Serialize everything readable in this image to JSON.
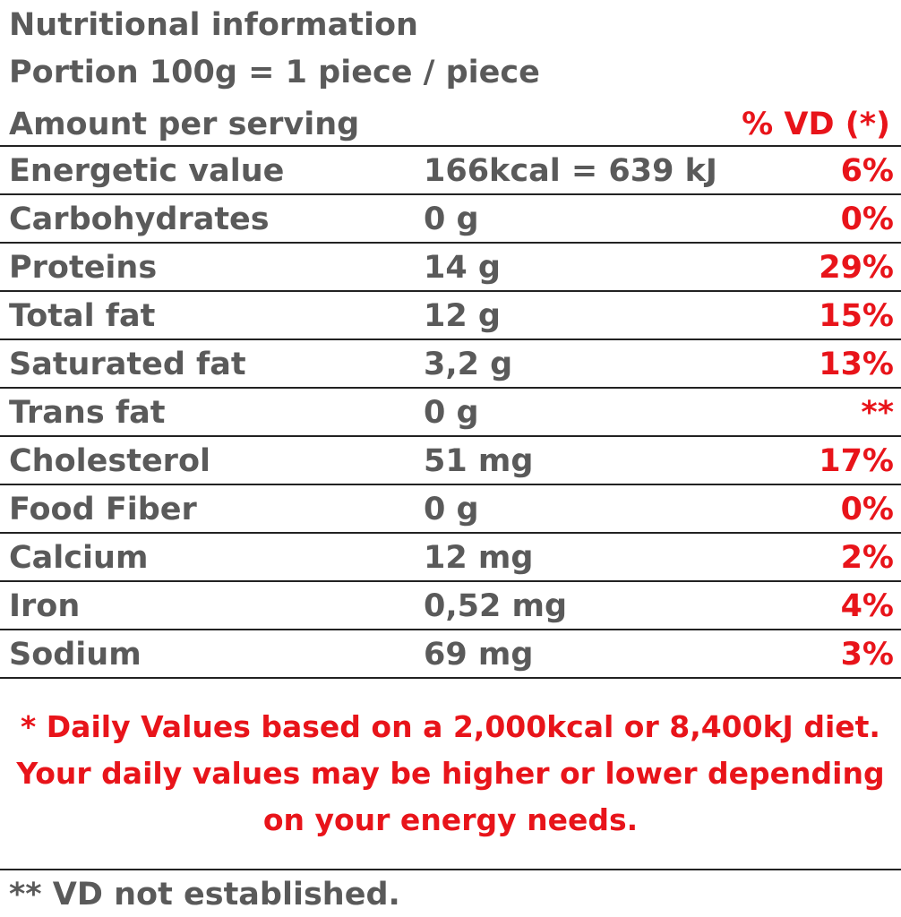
{
  "label": {
    "title": "Nutritional information",
    "portion": "Portion 100g = 1 piece / piece",
    "amount_header": "Amount per serving",
    "vd_header": "% VD (*)",
    "rows": [
      {
        "name": "Energetic value",
        "amount": "166kcal = 639 kJ",
        "pct": "6%"
      },
      {
        "name": "Carbohydrates",
        "amount": "0 g",
        "pct": "0%"
      },
      {
        "name": "Proteins",
        "amount": "14 g",
        "pct": "29%"
      },
      {
        "name": "Total fat",
        "amount": "12 g",
        "pct": "15%"
      },
      {
        "name": "Saturated fat",
        "amount": "3,2 g",
        "pct": "13%"
      },
      {
        "name": "Trans fat",
        "amount": "0 g",
        "pct": "**"
      },
      {
        "name": "Cholesterol",
        "amount": "51 mg",
        "pct": "17%"
      },
      {
        "name": "Food Fiber",
        "amount": "0 g",
        "pct": "0%"
      },
      {
        "name": "Calcium",
        "amount": "12 mg",
        "pct": "2%"
      },
      {
        "name": "Iron",
        "amount": "0,52 mg",
        "pct": "4%"
      },
      {
        "name": "Sodium",
        "amount": "69 mg",
        "pct": "3%"
      }
    ],
    "footnote_lines": [
      "* Daily Values based on a 2,000kcal or 8,400kJ diet.",
      "Your daily values may be higher or lower depending",
      "on your energy needs."
    ],
    "not_established": "** VD not established.",
    "colors": {
      "text_gray": "#5a5a5a",
      "accent_red": "#e8141a",
      "rule": "#222222"
    }
  }
}
